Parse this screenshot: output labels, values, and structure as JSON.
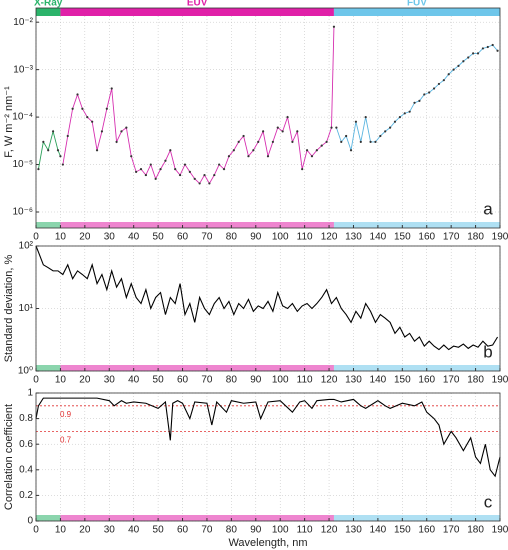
{
  "chart_data": [
    {
      "type": "line",
      "ylabel": "F, W m⁻² nm⁻¹",
      "annotation": "a",
      "log_y": true,
      "grid": true,
      "markers": true,
      "bands": [
        {
          "label": "X-Ray",
          "from": 0,
          "to": 10,
          "color": "#2bb36a"
        },
        {
          "label": "EUV",
          "from": 10,
          "to": 122,
          "color": "#e020a8"
        },
        {
          "label": "FUV",
          "from": 122,
          "to": 190,
          "color": "#6ec6ea"
        }
      ],
      "xlim": [
        0,
        190
      ],
      "xticks": [
        0,
        10,
        20,
        30,
        40,
        50,
        60,
        70,
        80,
        90,
        100,
        110,
        120,
        130,
        140,
        150,
        160,
        170,
        180,
        190
      ],
      "ylim": [
        4.6e-07,
        0.0135
      ],
      "yticks": [
        {
          "value": 1e-06,
          "label": "10⁻⁶"
        },
        {
          "value": 1e-05,
          "label": "10⁻⁵"
        },
        {
          "value": 0.0001,
          "label": "10⁻⁴"
        },
        {
          "value": 0.001,
          "label": "10⁻³"
        },
        {
          "value": 0.01,
          "label": "10⁻²"
        }
      ],
      "series": [
        {
          "color": "#2ca05a",
          "x": [
            1,
            3,
            5,
            7,
            9,
            10
          ],
          "values": [
            8e-06,
            3e-05,
            2e-05,
            5e-05,
            2e-05,
            1.5e-05
          ]
        },
        {
          "color": "#d62fb0",
          "x": [
            11,
            13,
            15,
            17,
            19,
            21,
            23,
            25,
            27,
            29,
            31,
            33,
            35,
            37,
            39,
            41,
            43,
            45,
            47,
            49,
            51,
            53,
            55,
            57,
            59,
            61,
            63,
            65,
            67,
            69,
            71,
            73,
            75,
            77,
            79,
            81,
            83,
            85,
            87,
            89,
            91,
            93,
            95,
            97,
            99,
            101,
            103,
            105,
            107,
            109,
            111,
            113,
            115,
            117,
            119,
            121,
            122
          ],
          "values": [
            1e-05,
            4e-05,
            0.00015,
            0.0003,
            0.00015,
            0.0001,
            8e-05,
            2e-05,
            5e-05,
            0.00015,
            0.0004,
            3e-05,
            5e-05,
            6e-05,
            1.5e-05,
            7e-06,
            8e-06,
            6e-06,
            1e-05,
            5e-06,
            8e-06,
            1.2e-05,
            2e-05,
            8e-06,
            6e-06,
            1e-05,
            7e-06,
            5e-06,
            4e-06,
            6e-06,
            4e-06,
            6e-06,
            1e-05,
            8e-06,
            1.5e-05,
            2e-05,
            3e-05,
            4e-05,
            1.5e-05,
            2e-05,
            3e-05,
            5e-05,
            1.5e-05,
            3e-05,
            6e-05,
            5e-05,
            0.0001,
            3e-05,
            5e-05,
            8e-06,
            2e-05,
            1.5e-05,
            2e-05,
            2.5e-05,
            3e-05,
            6e-05,
            0.008
          ]
        },
        {
          "color": "#5bb5e0",
          "x": [
            123,
            125,
            127,
            129,
            131,
            133,
            135,
            137,
            139,
            141,
            143,
            145,
            147,
            149,
            151,
            153,
            155,
            157,
            159,
            161,
            163,
            165,
            167,
            169,
            171,
            173,
            175,
            177,
            179,
            181,
            183,
            185,
            187,
            189
          ],
          "values": [
            6e-05,
            3e-05,
            4e-05,
            2e-05,
            8e-05,
            3e-05,
            0.0001,
            3e-05,
            3e-05,
            4e-05,
            5e-05,
            6e-05,
            8e-05,
            0.0001,
            0.00012,
            0.00013,
            0.0002,
            0.00022,
            0.0003,
            0.00033,
            0.0004,
            0.0005,
            0.0006,
            0.0008,
            0.001,
            0.0012,
            0.0015,
            0.0018,
            0.0022,
            0.0022,
            0.0028,
            0.003,
            0.0033,
            0.0025
          ]
        }
      ]
    },
    {
      "type": "line",
      "ylabel": "Standard deviation, %",
      "annotation": "b",
      "log_y": true,
      "grid": true,
      "xlim": [
        0,
        190
      ],
      "xticks": [
        0,
        10,
        20,
        30,
        40,
        50,
        60,
        70,
        80,
        90,
        100,
        110,
        120,
        130,
        140,
        150,
        160,
        170,
        180,
        190
      ],
      "ylim": [
        1,
        100
      ],
      "yticks": [
        {
          "value": 1,
          "label": "10⁰"
        },
        {
          "value": 10,
          "label": "10¹"
        },
        {
          "value": 100,
          "label": "10²"
        }
      ],
      "series": [
        {
          "color": "#000000",
          "x": [
            0,
            1,
            3,
            5,
            7,
            9,
            11,
            13,
            15,
            17,
            19,
            21,
            23,
            25,
            27,
            29,
            31,
            33,
            35,
            37,
            39,
            41,
            43,
            45,
            47,
            49,
            51,
            53,
            55,
            57,
            59,
            61,
            63,
            65,
            67,
            69,
            71,
            73,
            75,
            77,
            79,
            81,
            83,
            85,
            87,
            89,
            91,
            93,
            95,
            97,
            99,
            101,
            103,
            105,
            107,
            109,
            111,
            113,
            115,
            117,
            119,
            121,
            123,
            125,
            127,
            129,
            131,
            133,
            135,
            137,
            139,
            141,
            143,
            145,
            147,
            149,
            151,
            153,
            155,
            157,
            159,
            161,
            163,
            165,
            167,
            169,
            171,
            173,
            175,
            177,
            179,
            181,
            183,
            185,
            187,
            189
          ],
          "values": [
            100,
            80,
            50,
            45,
            40,
            40,
            35,
            50,
            30,
            40,
            35,
            30,
            50,
            25,
            35,
            20,
            40,
            22,
            30,
            15,
            25,
            15,
            12,
            20,
            10,
            15,
            18,
            8,
            15,
            12,
            25,
            8,
            12,
            6,
            15,
            10,
            8,
            12,
            15,
            10,
            13,
            8,
            12,
            10,
            14,
            9,
            11,
            10,
            13,
            9,
            18,
            11,
            10,
            12,
            9,
            11,
            12,
            10,
            12,
            15,
            20,
            12,
            15,
            10,
            8,
            6,
            9,
            7,
            12,
            9,
            6,
            8,
            7,
            6,
            4,
            5,
            3.5,
            4,
            3,
            3.5,
            2.5,
            3,
            2.5,
            2.2,
            2.6,
            2.2,
            2.5,
            2.4,
            2.7,
            2.3,
            2.6,
            2.4,
            3,
            2.5,
            2.6,
            3.5
          ]
        }
      ]
    },
    {
      "type": "line",
      "ylabel": "Correlation coefficient",
      "xlabel": "Wavelength, nm",
      "annotation": "c",
      "grid": true,
      "xlim": [
        0,
        190
      ],
      "xticks": [
        0,
        10,
        20,
        30,
        40,
        50,
        60,
        70,
        80,
        90,
        100,
        110,
        120,
        130,
        140,
        150,
        160,
        170,
        180,
        190
      ],
      "ylim": [
        0,
        1
      ],
      "yticks": [
        0,
        0.2,
        0.4,
        0.6,
        0.8,
        1
      ],
      "reference_lines": [
        {
          "value": 0.9,
          "label": "0.9",
          "color": "#e03030"
        },
        {
          "value": 0.7,
          "label": "0.7",
          "color": "#e03030"
        }
      ],
      "series": [
        {
          "color": "#000000",
          "x": [
            0,
            1,
            3,
            5,
            10,
            15,
            20,
            25,
            30,
            32,
            35,
            37,
            40,
            45,
            50,
            53,
            55,
            56,
            58,
            60,
            63,
            65,
            70,
            72,
            74,
            78,
            80,
            85,
            90,
            92,
            95,
            100,
            105,
            108,
            110,
            113,
            115,
            120,
            122,
            125,
            130,
            133,
            135,
            140,
            143,
            145,
            150,
            155,
            158,
            160,
            163,
            165,
            167,
            170,
            172,
            175,
            178,
            180,
            182,
            184,
            186,
            188,
            190
          ],
          "values": [
            0.8,
            0.9,
            0.96,
            0.96,
            0.96,
            0.96,
            0.96,
            0.96,
            0.94,
            0.9,
            0.94,
            0.92,
            0.93,
            0.92,
            0.88,
            0.93,
            0.63,
            0.92,
            0.94,
            0.92,
            0.8,
            0.93,
            0.92,
            0.75,
            0.93,
            0.85,
            0.94,
            0.92,
            0.93,
            0.8,
            0.93,
            0.94,
            0.85,
            0.93,
            0.94,
            0.88,
            0.94,
            0.95,
            0.95,
            0.93,
            0.95,
            0.9,
            0.88,
            0.94,
            0.9,
            0.88,
            0.92,
            0.9,
            0.93,
            0.85,
            0.8,
            0.75,
            0.6,
            0.7,
            0.65,
            0.55,
            0.65,
            0.5,
            0.45,
            0.6,
            0.4,
            0.35,
            0.5
          ]
        }
      ]
    }
  ]
}
